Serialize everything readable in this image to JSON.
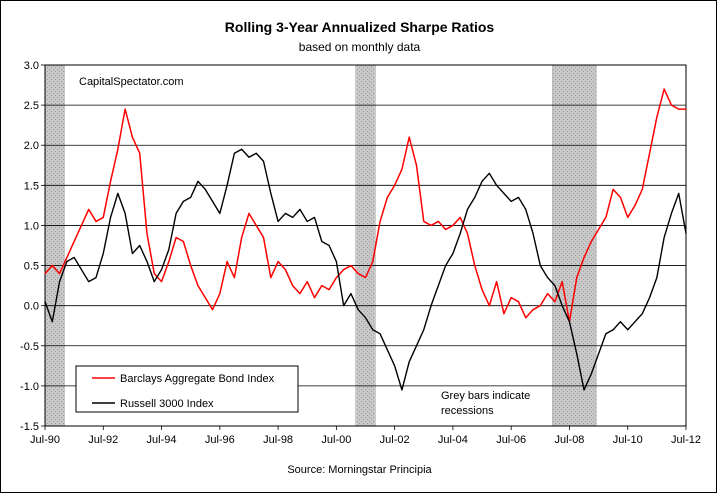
{
  "chart_data": {
    "type": "line",
    "title": "Rolling 3-Year Annualized Sharpe Ratios",
    "subtitle": "based on monthly data",
    "watermark": "CapitalSpectator.com",
    "source": "Source: Morningstar Principia",
    "annotation": [
      "Grey bars indicate",
      "recessions"
    ],
    "ylim": [
      -1.5,
      3.0
    ],
    "yticks": [
      "3.0",
      "2.5",
      "2.0",
      "1.5",
      "1.0",
      "0.5",
      "0.0",
      "-0.5",
      "-1.0",
      "-1.5"
    ],
    "xtick_labels": [
      "Jul-90",
      "Jul-92",
      "Jul-94",
      "Jul-96",
      "Jul-98",
      "Jul-00",
      "Jul-02",
      "Jul-04",
      "Jul-06",
      "Jul-08",
      "Jul-10",
      "Jul-12"
    ],
    "x_domain": [
      "1990-07",
      "2012-07"
    ],
    "grid": "horizontal",
    "recessions": [
      {
        "start": "1990-07",
        "end": "1991-03"
      },
      {
        "start": "2001-03",
        "end": "2001-11"
      },
      {
        "start": "2007-12",
        "end": "2009-06"
      }
    ],
    "legend": {
      "placement": "bottom-left",
      "items": [
        {
          "name": "Barclays Aggregate Bond Index",
          "color": "#ff0000"
        },
        {
          "name": "Russell 3000 Index",
          "color": "#000000"
        }
      ]
    },
    "series": [
      {
        "name": "Barclays Aggregate Bond Index",
        "color": "#ff0000",
        "points": [
          [
            "1990-07",
            0.4
          ],
          [
            "1990-10",
            0.5
          ],
          [
            "1991-01",
            0.4
          ],
          [
            "1991-04",
            0.6
          ],
          [
            "1991-07",
            0.8
          ],
          [
            "1991-10",
            1.0
          ],
          [
            "1992-01",
            1.2
          ],
          [
            "1992-04",
            1.05
          ],
          [
            "1992-07",
            1.1
          ],
          [
            "1992-10",
            1.55
          ],
          [
            "1993-01",
            1.95
          ],
          [
            "1993-04",
            2.45
          ],
          [
            "1993-07",
            2.1
          ],
          [
            "1993-10",
            1.9
          ],
          [
            "1994-01",
            0.9
          ],
          [
            "1994-04",
            0.4
          ],
          [
            "1994-07",
            0.3
          ],
          [
            "1994-10",
            0.55
          ],
          [
            "1995-01",
            0.85
          ],
          [
            "1995-04",
            0.8
          ],
          [
            "1995-07",
            0.5
          ],
          [
            "1995-10",
            0.25
          ],
          [
            "1996-01",
            0.1
          ],
          [
            "1996-04",
            -0.05
          ],
          [
            "1996-07",
            0.15
          ],
          [
            "1996-10",
            0.55
          ],
          [
            "1997-01",
            0.35
          ],
          [
            "1997-04",
            0.85
          ],
          [
            "1997-07",
            1.15
          ],
          [
            "1997-10",
            1.0
          ],
          [
            "1998-01",
            0.85
          ],
          [
            "1998-04",
            0.35
          ],
          [
            "1998-07",
            0.55
          ],
          [
            "1998-10",
            0.45
          ],
          [
            "1999-01",
            0.25
          ],
          [
            "1999-04",
            0.15
          ],
          [
            "1999-07",
            0.3
          ],
          [
            "1999-10",
            0.1
          ],
          [
            "2000-01",
            0.25
          ],
          [
            "2000-04",
            0.2
          ],
          [
            "2000-07",
            0.35
          ],
          [
            "2000-10",
            0.45
          ],
          [
            "2001-01",
            0.5
          ],
          [
            "2001-04",
            0.4
          ],
          [
            "2001-07",
            0.35
          ],
          [
            "2001-10",
            0.55
          ],
          [
            "2002-01",
            1.05
          ],
          [
            "2002-04",
            1.35
          ],
          [
            "2002-07",
            1.5
          ],
          [
            "2002-10",
            1.7
          ],
          [
            "2003-01",
            2.1
          ],
          [
            "2003-04",
            1.75
          ],
          [
            "2003-07",
            1.05
          ],
          [
            "2003-10",
            1.0
          ],
          [
            "2004-01",
            1.05
          ],
          [
            "2004-04",
            0.95
          ],
          [
            "2004-07",
            1.0
          ],
          [
            "2004-10",
            1.1
          ],
          [
            "2005-01",
            0.9
          ],
          [
            "2005-04",
            0.5
          ],
          [
            "2005-07",
            0.2
          ],
          [
            "2005-10",
            0.0
          ],
          [
            "2006-01",
            0.3
          ],
          [
            "2006-04",
            -0.1
          ],
          [
            "2006-07",
            0.1
          ],
          [
            "2006-10",
            0.05
          ],
          [
            "2007-01",
            -0.15
          ],
          [
            "2007-04",
            -0.05
          ],
          [
            "2007-07",
            0.0
          ],
          [
            "2007-10",
            0.15
          ],
          [
            "2008-01",
            0.05
          ],
          [
            "2008-04",
            0.3
          ],
          [
            "2008-07",
            -0.2
          ],
          [
            "2008-10",
            0.35
          ],
          [
            "2009-01",
            0.6
          ],
          [
            "2009-04",
            0.8
          ],
          [
            "2009-07",
            0.95
          ],
          [
            "2009-10",
            1.1
          ],
          [
            "2010-01",
            1.45
          ],
          [
            "2010-04",
            1.35
          ],
          [
            "2010-07",
            1.1
          ],
          [
            "2010-10",
            1.25
          ],
          [
            "2011-01",
            1.45
          ],
          [
            "2011-04",
            1.9
          ],
          [
            "2011-07",
            2.35
          ],
          [
            "2011-10",
            2.7
          ],
          [
            "2012-01",
            2.5
          ],
          [
            "2012-04",
            2.45
          ],
          [
            "2012-07",
            2.45
          ]
        ]
      },
      {
        "name": "Russell 3000 Index",
        "color": "#000000",
        "points": [
          [
            "1990-07",
            0.05
          ],
          [
            "1990-10",
            -0.2
          ],
          [
            "1991-01",
            0.3
          ],
          [
            "1991-04",
            0.55
          ],
          [
            "1991-07",
            0.6
          ],
          [
            "1991-10",
            0.45
          ],
          [
            "1992-01",
            0.3
          ],
          [
            "1992-04",
            0.35
          ],
          [
            "1992-07",
            0.65
          ],
          [
            "1992-10",
            1.1
          ],
          [
            "1993-01",
            1.4
          ],
          [
            "1993-04",
            1.15
          ],
          [
            "1993-07",
            0.65
          ],
          [
            "1993-10",
            0.75
          ],
          [
            "1994-01",
            0.55
          ],
          [
            "1994-04",
            0.3
          ],
          [
            "1994-07",
            0.45
          ],
          [
            "1994-10",
            0.7
          ],
          [
            "1995-01",
            1.15
          ],
          [
            "1995-04",
            1.3
          ],
          [
            "1995-07",
            1.35
          ],
          [
            "1995-10",
            1.55
          ],
          [
            "1996-01",
            1.45
          ],
          [
            "1996-04",
            1.3
          ],
          [
            "1996-07",
            1.15
          ],
          [
            "1996-10",
            1.5
          ],
          [
            "1997-01",
            1.9
          ],
          [
            "1997-04",
            1.95
          ],
          [
            "1997-07",
            1.85
          ],
          [
            "1997-10",
            1.9
          ],
          [
            "1998-01",
            1.8
          ],
          [
            "1998-04",
            1.4
          ],
          [
            "1998-07",
            1.05
          ],
          [
            "1998-10",
            1.15
          ],
          [
            "1999-01",
            1.1
          ],
          [
            "1999-04",
            1.2
          ],
          [
            "1999-07",
            1.05
          ],
          [
            "1999-10",
            1.1
          ],
          [
            "2000-01",
            0.8
          ],
          [
            "2000-04",
            0.75
          ],
          [
            "2000-07",
            0.55
          ],
          [
            "2000-10",
            0.0
          ],
          [
            "2001-01",
            0.15
          ],
          [
            "2001-04",
            -0.05
          ],
          [
            "2001-07",
            -0.15
          ],
          [
            "2001-10",
            -0.3
          ],
          [
            "2002-01",
            -0.35
          ],
          [
            "2002-04",
            -0.55
          ],
          [
            "2002-07",
            -0.75
          ],
          [
            "2002-10",
            -1.05
          ],
          [
            "2003-01",
            -0.7
          ],
          [
            "2003-04",
            -0.5
          ],
          [
            "2003-07",
            -0.3
          ],
          [
            "2003-10",
            0.0
          ],
          [
            "2004-01",
            0.25
          ],
          [
            "2004-04",
            0.5
          ],
          [
            "2004-07",
            0.65
          ],
          [
            "2004-10",
            0.9
          ],
          [
            "2005-01",
            1.2
          ],
          [
            "2005-04",
            1.35
          ],
          [
            "2005-07",
            1.55
          ],
          [
            "2005-10",
            1.65
          ],
          [
            "2006-01",
            1.5
          ],
          [
            "2006-04",
            1.4
          ],
          [
            "2006-07",
            1.3
          ],
          [
            "2006-10",
            1.35
          ],
          [
            "2007-01",
            1.2
          ],
          [
            "2007-04",
            0.9
          ],
          [
            "2007-07",
            0.5
          ],
          [
            "2007-10",
            0.35
          ],
          [
            "2008-01",
            0.25
          ],
          [
            "2008-04",
            0.0
          ],
          [
            "2008-07",
            -0.2
          ],
          [
            "2008-10",
            -0.6
          ],
          [
            "2009-01",
            -1.05
          ],
          [
            "2009-04",
            -0.85
          ],
          [
            "2009-07",
            -0.6
          ],
          [
            "2009-10",
            -0.35
          ],
          [
            "2010-01",
            -0.3
          ],
          [
            "2010-04",
            -0.2
          ],
          [
            "2010-07",
            -0.3
          ],
          [
            "2010-10",
            -0.2
          ],
          [
            "2011-01",
            -0.1
          ],
          [
            "2011-04",
            0.1
          ],
          [
            "2011-07",
            0.35
          ],
          [
            "2011-10",
            0.85
          ],
          [
            "2012-01",
            1.15
          ],
          [
            "2012-04",
            1.4
          ],
          [
            "2012-07",
            0.9
          ]
        ]
      }
    ]
  }
}
